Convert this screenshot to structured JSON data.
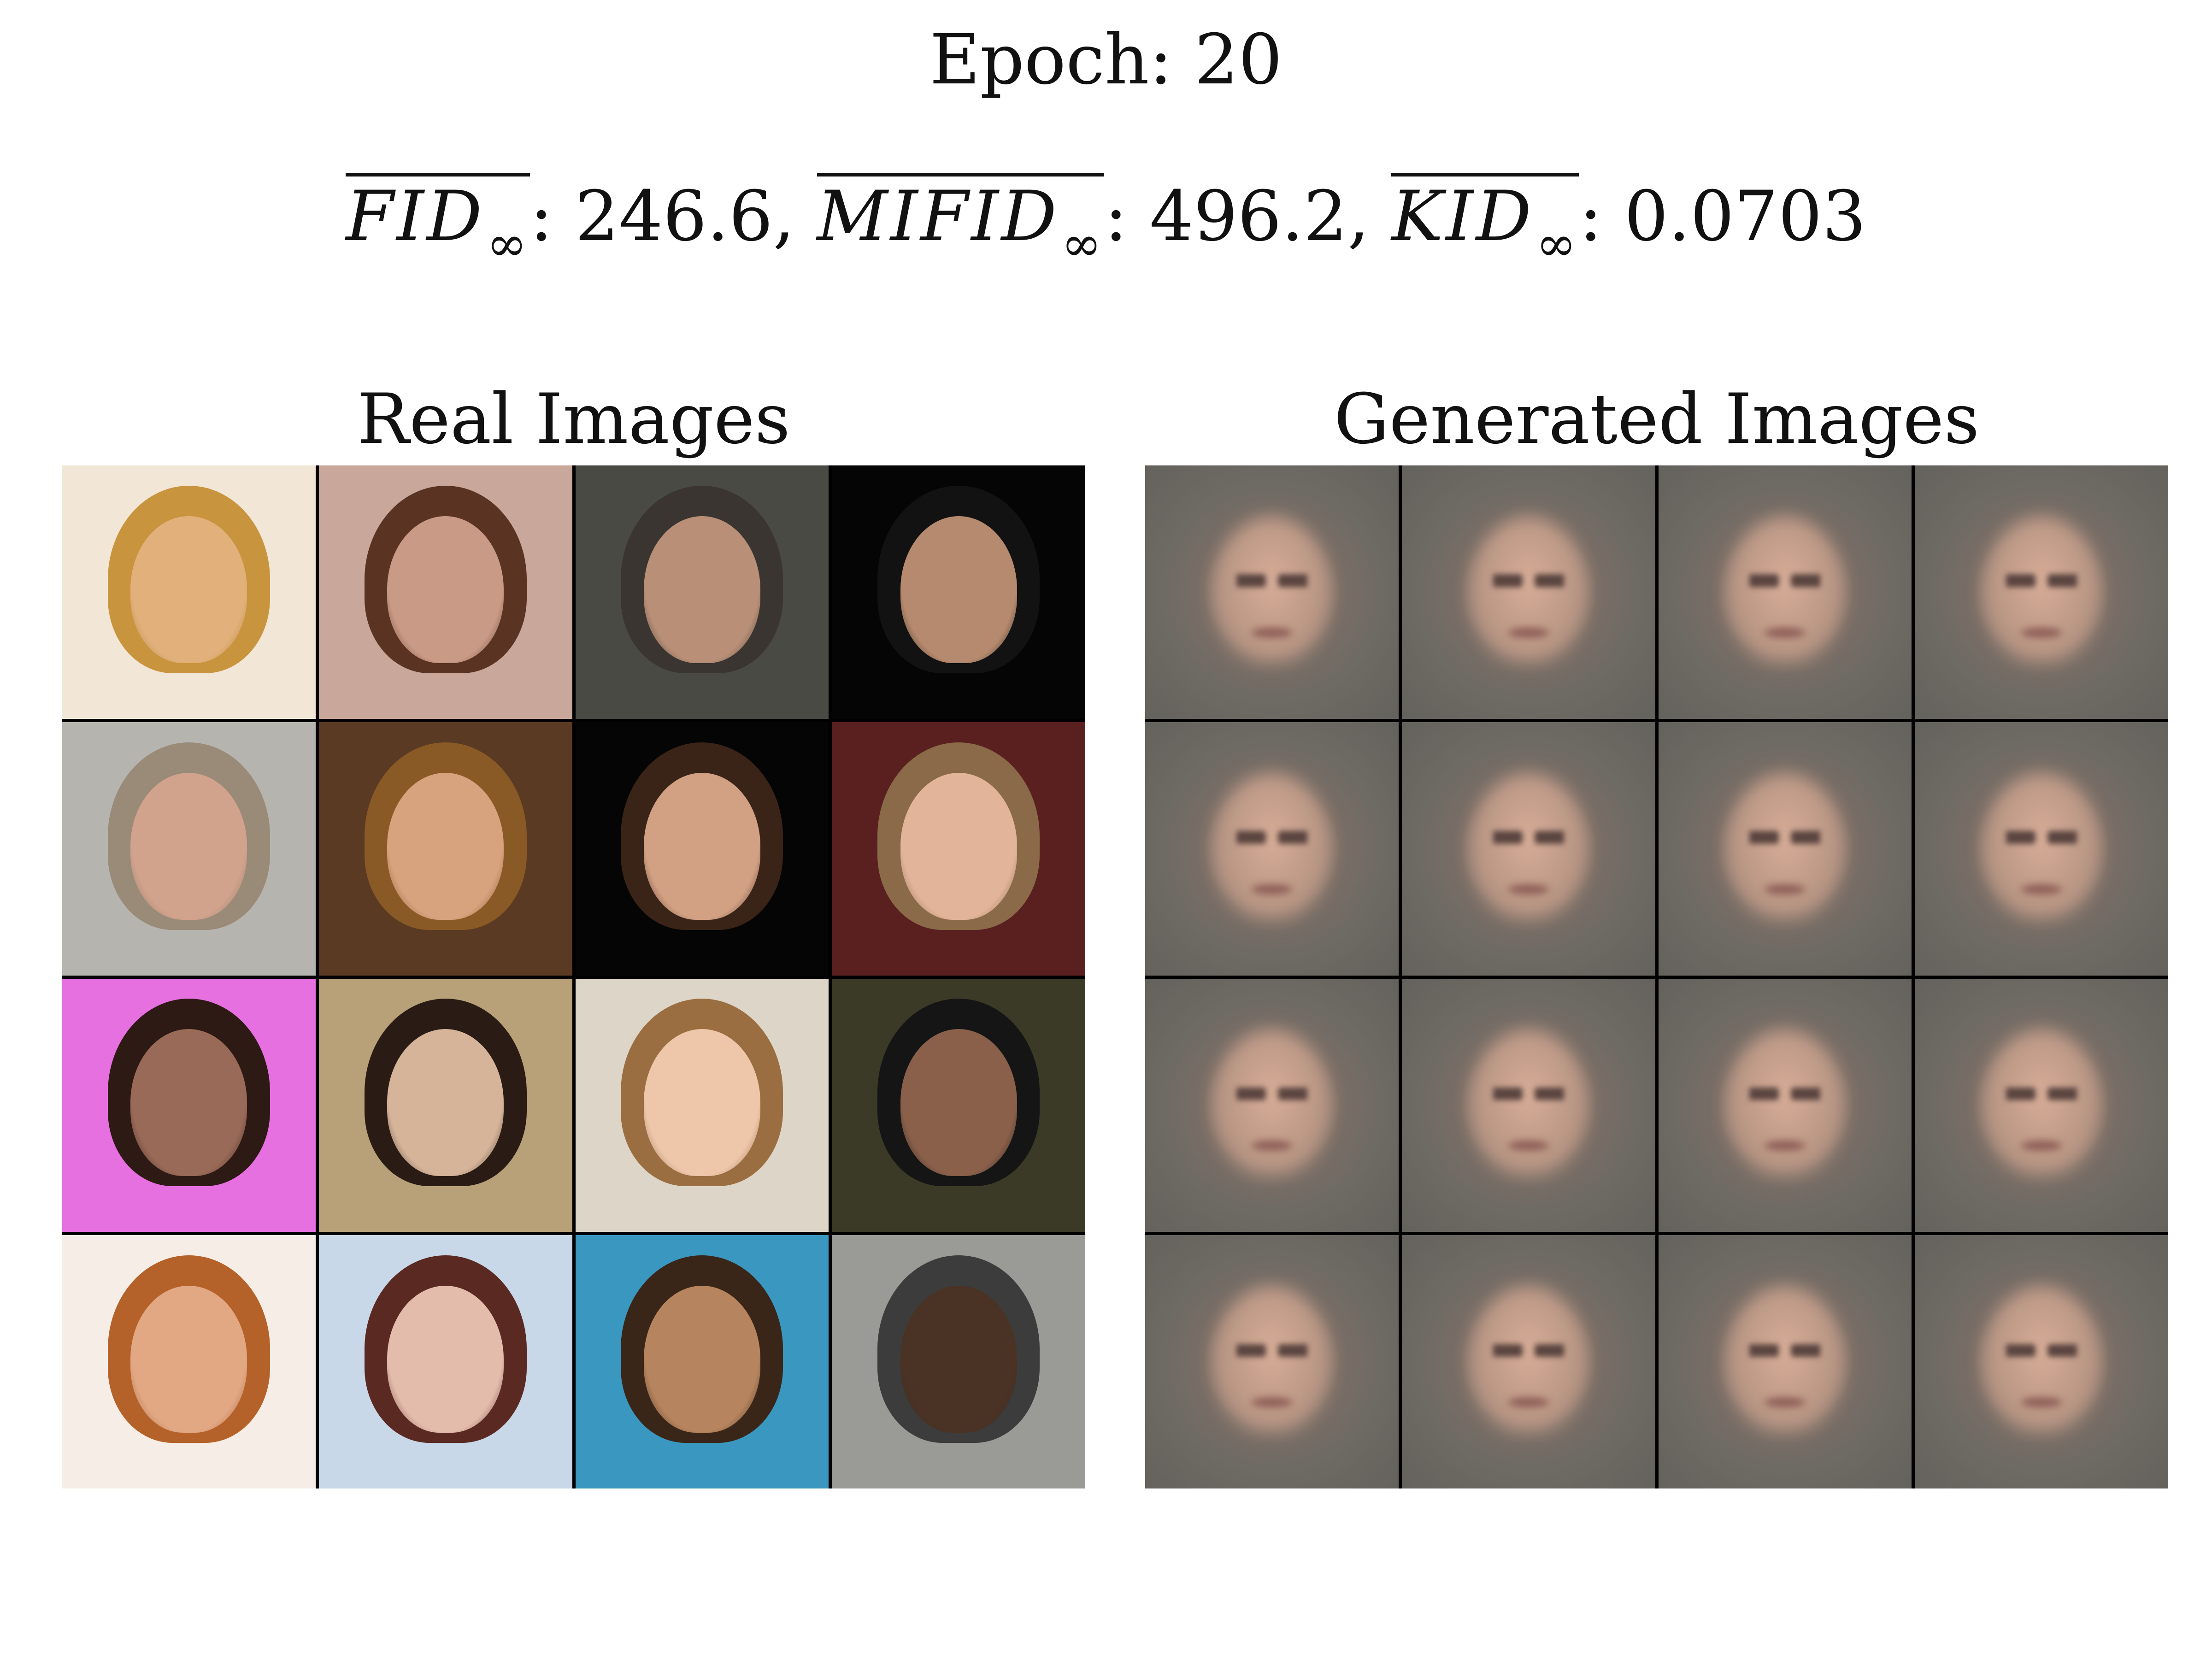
{
  "header": {
    "epoch_text": "Epoch: 20",
    "metrics": [
      {
        "name": "FID",
        "subscript": "∞",
        "value": "246.6",
        "separator": ","
      },
      {
        "name": "MIFID",
        "subscript": "∞",
        "value": "496.2",
        "separator": ","
      },
      {
        "name": "KID",
        "subscript": "∞",
        "value": "0.0703",
        "separator": ""
      }
    ]
  },
  "panels": {
    "real": {
      "title": "Real Images",
      "tiles": [
        {
          "bg": "#f2e6d6",
          "hair": "#c8943e",
          "face": "#e2b07a"
        },
        {
          "bg": "#c9a79a",
          "hair": "#5a3322",
          "face": "#c99a85"
        },
        {
          "bg": "#4a4a44",
          "hair": "#3a3530",
          "face": "#b98f78"
        },
        {
          "bg": "#050505",
          "hair": "#121212",
          "face": "#b68a6e"
        },
        {
          "bg": "#b6b4ae",
          "hair": "#9a8a78",
          "face": "#d1a28c"
        },
        {
          "bg": "#5a3a22",
          "hair": "#8a5a26",
          "face": "#d7a27e"
        },
        {
          "bg": "#050505",
          "hair": "#3a2418",
          "face": "#d2a083"
        },
        {
          "bg": "#5a2020",
          "hair": "#8a6a48",
          "face": "#e2b49a"
        },
        {
          "bg": "#e670e0",
          "hair": "#2e1a14",
          "face": "#9a6a58"
        },
        {
          "bg": "#b8a078",
          "hair": "#2a1c14",
          "face": "#d6b49a"
        },
        {
          "bg": "#ddd5c8",
          "hair": "#9a6e40",
          "face": "#eec6aa"
        },
        {
          "bg": "#3a3a26",
          "hair": "#151515",
          "face": "#8a604a"
        },
        {
          "bg": "#f6eee6",
          "hair": "#b4622a",
          "face": "#e2a884"
        },
        {
          "bg": "#c8d8e8",
          "hair": "#5a2a22",
          "face": "#e4bcac"
        },
        {
          "bg": "#3a98c0",
          "hair": "#3a2618",
          "face": "#b6845e"
        },
        {
          "bg": "#9a9a96",
          "hair": "#3c3c3c",
          "face": "#4a3224"
        }
      ]
    },
    "generated": {
      "title": "Generated Images",
      "tile_count": 16
    }
  }
}
